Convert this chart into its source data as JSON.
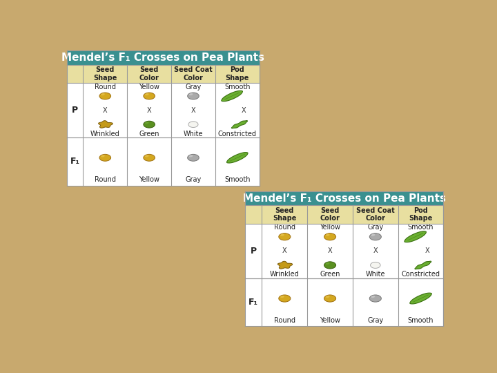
{
  "title_text1": "Mendel’s F",
  "title_sub": "1",
  "title_text2": " Crosses on Pea Plants",
  "title_color": "#FFFFFF",
  "title_bg_color": "#3A9090",
  "header_bg_color": "#E8DFA0",
  "header_labels": [
    "Seed\nShape",
    "Seed\nColor",
    "Seed Coat\nColor",
    "Pod\nShape"
  ],
  "p_row_top_labels": [
    "Round",
    "Yellow",
    "Gray",
    "Smooth"
  ],
  "p_row_bot_labels": [
    "Wrinkled",
    "Green",
    "White",
    "Constricted"
  ],
  "f1_row_bot_labels": [
    "Round",
    "Yellow",
    "Gray",
    "Smooth"
  ],
  "bg_color": "#C8A96E",
  "table_bg_color": "#FFFFFF",
  "border_color": "#999999",
  "col_header_fontsize": 7,
  "cell_label_fontsize": 7,
  "row_label_fontsize": 9,
  "title_fontsize": 11,
  "table1": [
    0.012,
    0.51,
    0.5,
    0.47
  ],
  "table2": [
    0.475,
    0.02,
    0.515,
    0.47
  ]
}
